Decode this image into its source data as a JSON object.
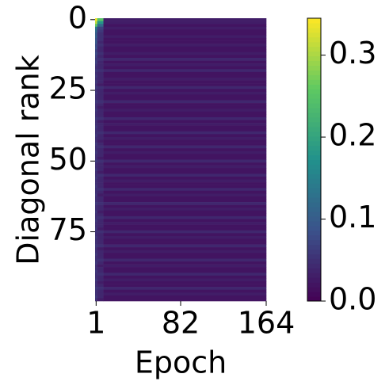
{
  "chart_data": {
    "type": "heatmap",
    "xlabel": "Epoch",
    "ylabel": "Diagonal rank",
    "xbins": [
      0,
      2,
      8,
      164
    ],
    "xlim": [
      0,
      164
    ],
    "xticks": [
      1,
      82,
      164
    ],
    "ylim": [
      99.5,
      -0.5
    ],
    "yticks": [
      0,
      25,
      50,
      75
    ],
    "zlim": [
      0,
      0.345
    ],
    "zticks": [
      {
        "value": 0,
        "label": "0.0"
      },
      {
        "value": 0.1,
        "label": "0.1"
      },
      {
        "value": 0.2,
        "label": "0.2"
      },
      {
        "value": 0.3,
        "label": "0.3"
      }
    ],
    "z": [
      [
        0.34,
        0.25,
        0.03
      ],
      [
        0.31,
        0.18,
        0.03
      ],
      [
        0.26,
        0.12,
        0.02
      ],
      [
        0.14,
        0.07,
        0.03
      ],
      [
        0.12,
        0.06,
        0.02
      ],
      [
        0.1,
        0.05,
        0.02
      ],
      [
        0.11,
        0.05,
        0.03
      ],
      [
        0.09,
        0.05,
        0.02
      ],
      [
        0.1,
        0.04,
        0.02
      ],
      [
        0.08,
        0.05,
        0.03
      ],
      [
        0.09,
        0.04,
        0.02
      ],
      [
        0.07,
        0.04,
        0.02
      ],
      [
        0.08,
        0.05,
        0.03
      ],
      [
        0.07,
        0.04,
        0.02
      ],
      [
        0.06,
        0.05,
        0.04
      ],
      [
        0.07,
        0.04,
        0.02
      ],
      [
        0.06,
        0.04,
        0.03
      ],
      [
        0.05,
        0.04,
        0.02
      ],
      [
        0.06,
        0.05,
        0.04
      ],
      [
        0.05,
        0.04,
        0.02
      ],
      [
        0.06,
        0.04,
        0.02
      ],
      [
        0.05,
        0.04,
        0.03
      ],
      [
        0.06,
        0.04,
        0.02
      ],
      [
        0.05,
        0.03,
        0.02
      ],
      [
        0.06,
        0.05,
        0.04
      ],
      [
        0.05,
        0.04,
        0.02
      ],
      [
        0.06,
        0.04,
        0.03
      ],
      [
        0.05,
        0.04,
        0.02
      ],
      [
        0.05,
        0.04,
        0.02
      ],
      [
        0.06,
        0.05,
        0.04
      ],
      [
        0.05,
        0.04,
        0.02
      ],
      [
        0.05,
        0.03,
        0.02
      ],
      [
        0.06,
        0.04,
        0.03
      ],
      [
        0.05,
        0.04,
        0.02
      ],
      [
        0.05,
        0.04,
        0.02
      ],
      [
        0.06,
        0.05,
        0.04
      ],
      [
        0.05,
        0.03,
        0.02
      ],
      [
        0.05,
        0.04,
        0.03
      ],
      [
        0.06,
        0.04,
        0.02
      ],
      [
        0.05,
        0.04,
        0.02
      ],
      [
        0.05,
        0.05,
        0.04
      ],
      [
        0.06,
        0.04,
        0.02
      ],
      [
        0.05,
        0.04,
        0.03
      ],
      [
        0.05,
        0.03,
        0.02
      ],
      [
        0.06,
        0.04,
        0.02
      ],
      [
        0.05,
        0.05,
        0.04
      ],
      [
        0.05,
        0.04,
        0.02
      ],
      [
        0.06,
        0.04,
        0.03
      ],
      [
        0.05,
        0.04,
        0.02
      ],
      [
        0.05,
        0.03,
        0.02
      ],
      [
        0.06,
        0.05,
        0.04
      ],
      [
        0.05,
        0.04,
        0.02
      ],
      [
        0.05,
        0.04,
        0.03
      ],
      [
        0.06,
        0.04,
        0.02
      ],
      [
        0.05,
        0.03,
        0.02
      ],
      [
        0.05,
        0.05,
        0.04
      ],
      [
        0.06,
        0.04,
        0.02
      ],
      [
        0.05,
        0.04,
        0.03
      ],
      [
        0.05,
        0.04,
        0.02
      ],
      [
        0.06,
        0.04,
        0.02
      ],
      [
        0.05,
        0.05,
        0.04
      ],
      [
        0.05,
        0.04,
        0.02
      ],
      [
        0.06,
        0.03,
        0.03
      ],
      [
        0.05,
        0.04,
        0.02
      ],
      [
        0.05,
        0.04,
        0.02
      ],
      [
        0.06,
        0.05,
        0.04
      ],
      [
        0.05,
        0.04,
        0.02
      ],
      [
        0.05,
        0.04,
        0.03
      ],
      [
        0.06,
        0.03,
        0.02
      ],
      [
        0.05,
        0.04,
        0.02
      ],
      [
        0.05,
        0.05,
        0.04
      ],
      [
        0.06,
        0.04,
        0.02
      ],
      [
        0.05,
        0.04,
        0.03
      ],
      [
        0.05,
        0.04,
        0.02
      ],
      [
        0.06,
        0.03,
        0.02
      ],
      [
        0.05,
        0.05,
        0.04
      ],
      [
        0.05,
        0.04,
        0.02
      ],
      [
        0.06,
        0.04,
        0.03
      ],
      [
        0.05,
        0.04,
        0.02
      ],
      [
        0.05,
        0.04,
        0.02
      ],
      [
        0.06,
        0.05,
        0.04
      ],
      [
        0.05,
        0.03,
        0.02
      ],
      [
        0.05,
        0.04,
        0.03
      ],
      [
        0.06,
        0.04,
        0.02
      ],
      [
        0.05,
        0.04,
        0.02
      ],
      [
        0.05,
        0.05,
        0.04
      ],
      [
        0.06,
        0.04,
        0.02
      ],
      [
        0.05,
        0.03,
        0.03
      ],
      [
        0.05,
        0.04,
        0.02
      ],
      [
        0.06,
        0.04,
        0.02
      ],
      [
        0.05,
        0.05,
        0.04
      ],
      [
        0.05,
        0.04,
        0.02
      ],
      [
        0.06,
        0.04,
        0.03
      ],
      [
        0.05,
        0.03,
        0.02
      ],
      [
        0.05,
        0.04,
        0.02
      ],
      [
        0.06,
        0.05,
        0.04
      ],
      [
        0.05,
        0.04,
        0.02
      ],
      [
        0.05,
        0.04,
        0.03
      ],
      [
        0.06,
        0.04,
        0.02
      ],
      [
        0.05,
        0.03,
        0.02
      ]
    ]
  }
}
